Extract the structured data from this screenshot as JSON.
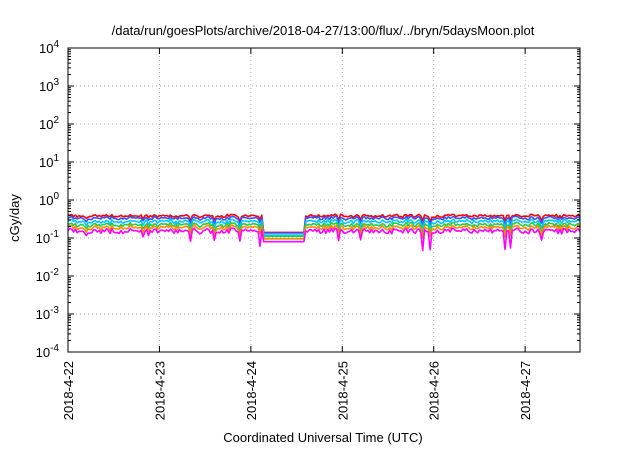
{
  "chart_data": {
    "type": "line",
    "title": "/data/run/goesPlots/archive/2018-04-27/13:00/flux/../bryn/5daysMoon.plot",
    "xlabel": "Coordinated Universal Time (UTC)",
    "ylabel": "cGy/day",
    "yscale": "log",
    "ylim": [
      0.0001,
      10000
    ],
    "xlim_days": [
      0,
      5.6
    ],
    "grid": true,
    "y_ticks": [
      {
        "base": "10",
        "exp": "-4",
        "value": 0.0001
      },
      {
        "base": "10",
        "exp": "-3",
        "value": 0.001
      },
      {
        "base": "10",
        "exp": "-2",
        "value": 0.01
      },
      {
        "base": "10",
        "exp": "-1",
        "value": 0.1
      },
      {
        "base": "10",
        "exp": "0",
        "value": 1
      },
      {
        "base": "10",
        "exp": "1",
        "value": 10
      },
      {
        "base": "10",
        "exp": "2",
        "value": 100
      },
      {
        "base": "10",
        "exp": "3",
        "value": 1000
      },
      {
        "base": "10",
        "exp": "4",
        "value": 10000
      }
    ],
    "x_ticks": [
      "2018-4-22",
      "2018-4-23",
      "2018-4-24",
      "2018-4-25",
      "2018-4-26",
      "2018-4-27"
    ],
    "gap": {
      "start_day": 2.12,
      "end_day": 2.6
    },
    "series": [
      {
        "color": "#ff0000",
        "base": 0.38,
        "gap_level": 0.14
      },
      {
        "color": "#3355ff",
        "base": 0.33,
        "gap_level": 0.135
      },
      {
        "color": "#00c8ff",
        "base": 0.27,
        "gap_level": 0.12
      },
      {
        "color": "#22cc44",
        "base": 0.22,
        "gap_level": 0.11
      },
      {
        "color": "#ff8800",
        "base": 0.185,
        "gap_level": 0.095
      },
      {
        "color": "#ff00ff",
        "base": 0.15,
        "gap_level": 0.08
      }
    ]
  }
}
